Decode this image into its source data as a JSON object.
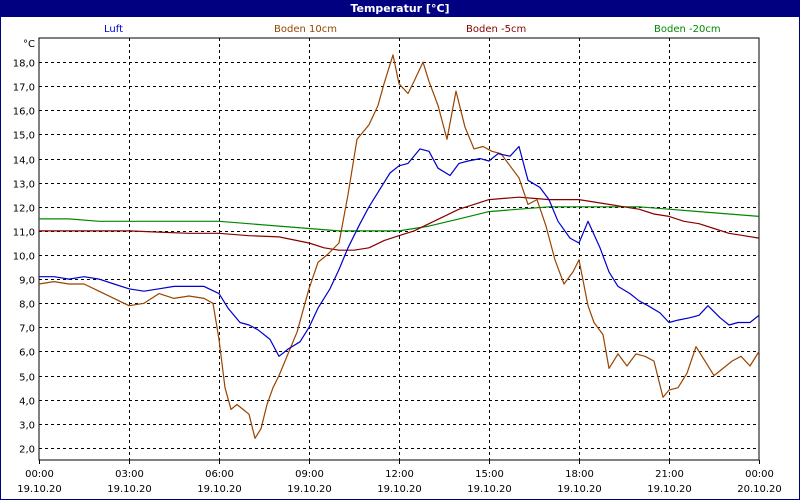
{
  "title": "Temperatur [°C]",
  "chart_data": {
    "type": "line",
    "title": "Temperatur [°C]",
    "ylabel": "°C",
    "xlabel": "",
    "xlim_hours": [
      0,
      24
    ],
    "ylim": [
      1.5,
      19.0
    ],
    "grid": true,
    "legend_placement": "top",
    "y_ticks": [
      "2,0",
      "3,0",
      "4,0",
      "5,0",
      "6,0",
      "7,0",
      "8,0",
      "9,0",
      "10,0",
      "11,0",
      "12,0",
      "13,0",
      "14,0",
      "15,0",
      "16,0",
      "17,0",
      "18,0"
    ],
    "y_tick_values": [
      2,
      3,
      4,
      5,
      6,
      7,
      8,
      9,
      10,
      11,
      12,
      13,
      14,
      15,
      16,
      17,
      18
    ],
    "x_ticks": [
      {
        "time": "00:00",
        "date": "19.10.20"
      },
      {
        "time": "03:00",
        "date": "19.10.20"
      },
      {
        "time": "06:00",
        "date": "19.10.20"
      },
      {
        "time": "09:00",
        "date": "19.10.20"
      },
      {
        "time": "12:00",
        "date": "19.10.20"
      },
      {
        "time": "15:00",
        "date": "19.10.20"
      },
      {
        "time": "18:00",
        "date": "19.10.20"
      },
      {
        "time": "21:00",
        "date": "19.10.20"
      },
      {
        "time": "00:00",
        "date": "20.10.20"
      }
    ],
    "x_tick_values": [
      0,
      3,
      6,
      9,
      12,
      15,
      18,
      21,
      24
    ],
    "series": [
      {
        "name": "Luft",
        "color": "#0000cc",
        "x": [
          0,
          0.5,
          1,
          1.5,
          2,
          2.5,
          3,
          3.5,
          4,
          4.5,
          5,
          5.5,
          6,
          6.3,
          6.7,
          7,
          7.3,
          7.7,
          8,
          8.3,
          8.7,
          9,
          9.3,
          9.7,
          10,
          10.3,
          10.7,
          11,
          11.3,
          11.7,
          12,
          12.3,
          12.7,
          13,
          13.3,
          13.7,
          14,
          14.3,
          14.7,
          15,
          15.3,
          15.7,
          16,
          16.3,
          16.7,
          17,
          17.3,
          17.7,
          18,
          18.3,
          18.7,
          19,
          19.3,
          19.7,
          20,
          20.3,
          20.7,
          21,
          21.3,
          21.7,
          22,
          22.3,
          22.7,
          23,
          23.3,
          23.7,
          24
        ],
        "y": [
          9.1,
          9.1,
          9.0,
          9.1,
          9.0,
          8.8,
          8.6,
          8.5,
          8.6,
          8.7,
          8.7,
          8.7,
          8.4,
          7.8,
          7.2,
          7.1,
          6.9,
          6.5,
          5.8,
          6.1,
          6.4,
          7.0,
          7.8,
          8.6,
          9.4,
          10.3,
          11.3,
          12.0,
          12.6,
          13.4,
          13.7,
          13.8,
          14.4,
          14.3,
          13.6,
          13.3,
          13.8,
          13.9,
          14.0,
          13.9,
          14.2,
          14.1,
          14.5,
          13.1,
          12.8,
          12.3,
          11.4,
          10.7,
          10.5,
          11.4,
          10.3,
          9.3,
          8.7,
          8.4,
          8.1,
          7.9,
          7.6,
          7.2,
          7.3,
          7.4,
          7.5,
          7.9,
          7.4,
          7.1,
          7.2,
          7.2,
          7.5
        ]
      },
      {
        "name": "Boden 10cm",
        "color": "#994400",
        "x": [
          0,
          0.5,
          1,
          1.5,
          2,
          2.5,
          3,
          3.5,
          4,
          4.5,
          5,
          5.5,
          5.8,
          6,
          6.2,
          6.4,
          6.6,
          6.8,
          7,
          7.2,
          7.4,
          7.6,
          7.8,
          8,
          8.3,
          8.6,
          9,
          9.3,
          9.6,
          10,
          10.3,
          10.6,
          11,
          11.3,
          11.5,
          11.8,
          12,
          12.3,
          12.5,
          12.8,
          13,
          13.3,
          13.6,
          13.9,
          14.2,
          14.5,
          14.8,
          15.1,
          15.4,
          15.7,
          16,
          16.3,
          16.6,
          16.9,
          17.2,
          17.5,
          17.8,
          18,
          18.3,
          18.5,
          18.8,
          19,
          19.3,
          19.6,
          19.9,
          20.2,
          20.5,
          20.8,
          21,
          21.3,
          21.6,
          21.9,
          22.2,
          22.5,
          22.8,
          23.1,
          23.4,
          23.7,
          24
        ],
        "y": [
          8.8,
          8.9,
          8.8,
          8.8,
          8.5,
          8.2,
          7.9,
          8.0,
          8.4,
          8.2,
          8.3,
          8.2,
          8.0,
          6.5,
          4.5,
          3.6,
          3.8,
          3.6,
          3.4,
          2.4,
          2.8,
          3.8,
          4.5,
          5.0,
          5.9,
          6.8,
          8.6,
          9.7,
          10.0,
          10.5,
          12.5,
          14.8,
          15.4,
          16.2,
          17.1,
          18.3,
          17.1,
          16.7,
          17.2,
          18.0,
          17.2,
          16.2,
          14.8,
          16.8,
          15.3,
          14.4,
          14.5,
          14.3,
          14.2,
          13.7,
          13.2,
          12.1,
          12.3,
          11.2,
          9.8,
          8.8,
          9.3,
          9.8,
          7.9,
          7.2,
          6.7,
          5.3,
          5.9,
          5.4,
          5.9,
          5.8,
          5.6,
          4.1,
          4.4,
          4.5,
          5.1,
          6.2,
          5.6,
          5.0,
          5.3,
          5.6,
          5.8,
          5.4,
          6.0
        ]
      },
      {
        "name": "Boden -5cm",
        "color": "#880000",
        "x": [
          0,
          1,
          2,
          3,
          4,
          5,
          6,
          7,
          8,
          9,
          9.5,
          10,
          10.5,
          11,
          11.5,
          12,
          12.5,
          13,
          13.5,
          14,
          14.5,
          15,
          15.5,
          16,
          16.5,
          17,
          17.5,
          18,
          18.5,
          19,
          19.5,
          20,
          20.5,
          21,
          21.5,
          22,
          22.5,
          23,
          23.5,
          24
        ],
        "y": [
          11.0,
          11.0,
          11.0,
          11.0,
          10.95,
          10.9,
          10.9,
          10.8,
          10.75,
          10.5,
          10.3,
          10.2,
          10.2,
          10.3,
          10.6,
          10.8,
          11.0,
          11.3,
          11.6,
          11.9,
          12.1,
          12.3,
          12.35,
          12.4,
          12.35,
          12.3,
          12.3,
          12.3,
          12.2,
          12.1,
          12.0,
          11.9,
          11.7,
          11.6,
          11.4,
          11.3,
          11.1,
          10.9,
          10.8,
          10.7
        ]
      },
      {
        "name": "Boden -20cm",
        "color": "#008800",
        "x": [
          0,
          1,
          2,
          3,
          4,
          5,
          6,
          7,
          8,
          9,
          10,
          11,
          12,
          13,
          14,
          15,
          16,
          17,
          18,
          19,
          20,
          21,
          22,
          23,
          24
        ],
        "y": [
          11.5,
          11.5,
          11.4,
          11.4,
          11.4,
          11.4,
          11.4,
          11.3,
          11.2,
          11.1,
          11.0,
          11.0,
          11.0,
          11.2,
          11.5,
          11.8,
          11.9,
          12.0,
          12.0,
          12.0,
          12.0,
          11.9,
          11.8,
          11.7,
          11.6
        ]
      }
    ]
  }
}
